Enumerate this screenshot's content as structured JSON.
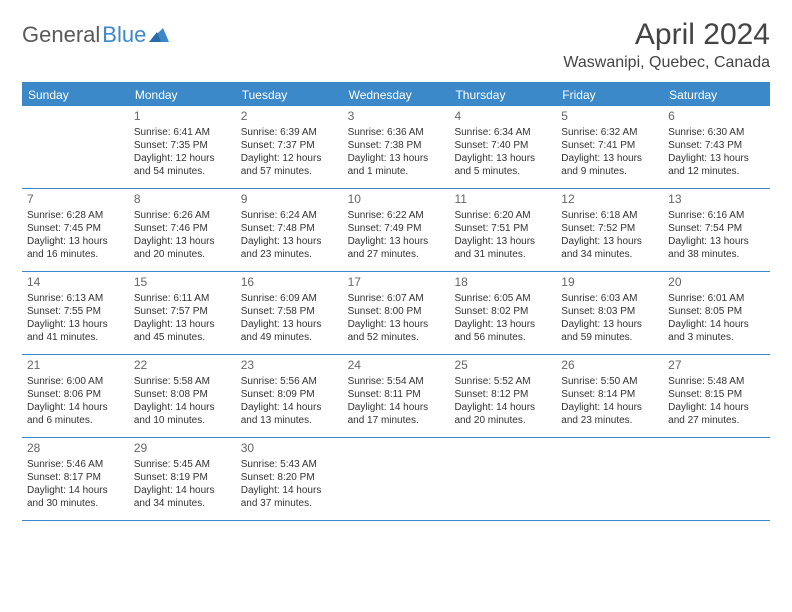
{
  "logo": {
    "text1": "General",
    "text2": "Blue"
  },
  "title": "April 2024",
  "location": "Waswanipi, Quebec, Canada",
  "colors": {
    "accent": "#3b89c9",
    "header_text": "#ffffff",
    "body_text": "#333333",
    "day_num": "#666666",
    "title_text": "#444444",
    "background": "#ffffff"
  },
  "day_headers": [
    "Sunday",
    "Monday",
    "Tuesday",
    "Wednesday",
    "Thursday",
    "Friday",
    "Saturday"
  ],
  "weeks": [
    [
      null,
      {
        "n": "1",
        "sr": "Sunrise: 6:41 AM",
        "ss": "Sunset: 7:35 PM",
        "d1": "Daylight: 12 hours",
        "d2": "and 54 minutes."
      },
      {
        "n": "2",
        "sr": "Sunrise: 6:39 AM",
        "ss": "Sunset: 7:37 PM",
        "d1": "Daylight: 12 hours",
        "d2": "and 57 minutes."
      },
      {
        "n": "3",
        "sr": "Sunrise: 6:36 AM",
        "ss": "Sunset: 7:38 PM",
        "d1": "Daylight: 13 hours",
        "d2": "and 1 minute."
      },
      {
        "n": "4",
        "sr": "Sunrise: 6:34 AM",
        "ss": "Sunset: 7:40 PM",
        "d1": "Daylight: 13 hours",
        "d2": "and 5 minutes."
      },
      {
        "n": "5",
        "sr": "Sunrise: 6:32 AM",
        "ss": "Sunset: 7:41 PM",
        "d1": "Daylight: 13 hours",
        "d2": "and 9 minutes."
      },
      {
        "n": "6",
        "sr": "Sunrise: 6:30 AM",
        "ss": "Sunset: 7:43 PM",
        "d1": "Daylight: 13 hours",
        "d2": "and 12 minutes."
      }
    ],
    [
      {
        "n": "7",
        "sr": "Sunrise: 6:28 AM",
        "ss": "Sunset: 7:45 PM",
        "d1": "Daylight: 13 hours",
        "d2": "and 16 minutes."
      },
      {
        "n": "8",
        "sr": "Sunrise: 6:26 AM",
        "ss": "Sunset: 7:46 PM",
        "d1": "Daylight: 13 hours",
        "d2": "and 20 minutes."
      },
      {
        "n": "9",
        "sr": "Sunrise: 6:24 AM",
        "ss": "Sunset: 7:48 PM",
        "d1": "Daylight: 13 hours",
        "d2": "and 23 minutes."
      },
      {
        "n": "10",
        "sr": "Sunrise: 6:22 AM",
        "ss": "Sunset: 7:49 PM",
        "d1": "Daylight: 13 hours",
        "d2": "and 27 minutes."
      },
      {
        "n": "11",
        "sr": "Sunrise: 6:20 AM",
        "ss": "Sunset: 7:51 PM",
        "d1": "Daylight: 13 hours",
        "d2": "and 31 minutes."
      },
      {
        "n": "12",
        "sr": "Sunrise: 6:18 AM",
        "ss": "Sunset: 7:52 PM",
        "d1": "Daylight: 13 hours",
        "d2": "and 34 minutes."
      },
      {
        "n": "13",
        "sr": "Sunrise: 6:16 AM",
        "ss": "Sunset: 7:54 PM",
        "d1": "Daylight: 13 hours",
        "d2": "and 38 minutes."
      }
    ],
    [
      {
        "n": "14",
        "sr": "Sunrise: 6:13 AM",
        "ss": "Sunset: 7:55 PM",
        "d1": "Daylight: 13 hours",
        "d2": "and 41 minutes."
      },
      {
        "n": "15",
        "sr": "Sunrise: 6:11 AM",
        "ss": "Sunset: 7:57 PM",
        "d1": "Daylight: 13 hours",
        "d2": "and 45 minutes."
      },
      {
        "n": "16",
        "sr": "Sunrise: 6:09 AM",
        "ss": "Sunset: 7:58 PM",
        "d1": "Daylight: 13 hours",
        "d2": "and 49 minutes."
      },
      {
        "n": "17",
        "sr": "Sunrise: 6:07 AM",
        "ss": "Sunset: 8:00 PM",
        "d1": "Daylight: 13 hours",
        "d2": "and 52 minutes."
      },
      {
        "n": "18",
        "sr": "Sunrise: 6:05 AM",
        "ss": "Sunset: 8:02 PM",
        "d1": "Daylight: 13 hours",
        "d2": "and 56 minutes."
      },
      {
        "n": "19",
        "sr": "Sunrise: 6:03 AM",
        "ss": "Sunset: 8:03 PM",
        "d1": "Daylight: 13 hours",
        "d2": "and 59 minutes."
      },
      {
        "n": "20",
        "sr": "Sunrise: 6:01 AM",
        "ss": "Sunset: 8:05 PM",
        "d1": "Daylight: 14 hours",
        "d2": "and 3 minutes."
      }
    ],
    [
      {
        "n": "21",
        "sr": "Sunrise: 6:00 AM",
        "ss": "Sunset: 8:06 PM",
        "d1": "Daylight: 14 hours",
        "d2": "and 6 minutes."
      },
      {
        "n": "22",
        "sr": "Sunrise: 5:58 AM",
        "ss": "Sunset: 8:08 PM",
        "d1": "Daylight: 14 hours",
        "d2": "and 10 minutes."
      },
      {
        "n": "23",
        "sr": "Sunrise: 5:56 AM",
        "ss": "Sunset: 8:09 PM",
        "d1": "Daylight: 14 hours",
        "d2": "and 13 minutes."
      },
      {
        "n": "24",
        "sr": "Sunrise: 5:54 AM",
        "ss": "Sunset: 8:11 PM",
        "d1": "Daylight: 14 hours",
        "d2": "and 17 minutes."
      },
      {
        "n": "25",
        "sr": "Sunrise: 5:52 AM",
        "ss": "Sunset: 8:12 PM",
        "d1": "Daylight: 14 hours",
        "d2": "and 20 minutes."
      },
      {
        "n": "26",
        "sr": "Sunrise: 5:50 AM",
        "ss": "Sunset: 8:14 PM",
        "d1": "Daylight: 14 hours",
        "d2": "and 23 minutes."
      },
      {
        "n": "27",
        "sr": "Sunrise: 5:48 AM",
        "ss": "Sunset: 8:15 PM",
        "d1": "Daylight: 14 hours",
        "d2": "and 27 minutes."
      }
    ],
    [
      {
        "n": "28",
        "sr": "Sunrise: 5:46 AM",
        "ss": "Sunset: 8:17 PM",
        "d1": "Daylight: 14 hours",
        "d2": "and 30 minutes."
      },
      {
        "n": "29",
        "sr": "Sunrise: 5:45 AM",
        "ss": "Sunset: 8:19 PM",
        "d1": "Daylight: 14 hours",
        "d2": "and 34 minutes."
      },
      {
        "n": "30",
        "sr": "Sunrise: 5:43 AM",
        "ss": "Sunset: 8:20 PM",
        "d1": "Daylight: 14 hours",
        "d2": "and 37 minutes."
      },
      null,
      null,
      null,
      null
    ]
  ]
}
